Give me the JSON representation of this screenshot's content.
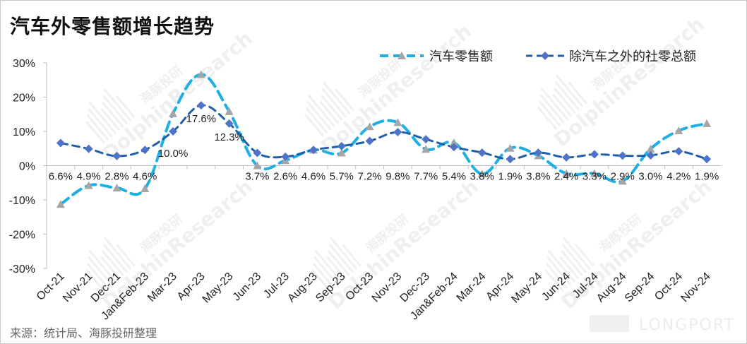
{
  "title": "汽车外零售额增长趋势",
  "source": "来源：统计局、海豚投研整理",
  "watermark": {
    "cn": "海豚投研",
    "en": "DolphinResearch",
    "brand": "LONGPORT"
  },
  "colors": {
    "retail_line": "#1eb0e3",
    "retail_marker": "#a6a6a6",
    "ex_line": "#1f5fa8",
    "ex_marker": "#4f73c7",
    "axis": "#bfbfbf"
  },
  "chart_data": {
    "type": "line",
    "categories": [
      "Oct-21",
      "Nov-21",
      "Dec-21",
      "Jan&Feb-23",
      "Mar-23",
      "Apr-23",
      "May-23",
      "Jun-23",
      "Jul-23",
      "Aug-23",
      "Sep-23",
      "Oct-23",
      "Nov-23",
      "Dec-23",
      "Jan&Feb-24",
      "Mar-24",
      "Apr-24",
      "May-24",
      "Jun-24",
      "Jul-24",
      "Aug-24",
      "Sep-24",
      "Oct-24",
      "Nov-24"
    ],
    "ylim": [
      -30,
      30
    ],
    "yticks": [
      -30,
      -20,
      -10,
      0,
      10,
      20,
      30
    ],
    "ytick_labels": [
      "-30%",
      "-20%",
      "-10%",
      "0%",
      "10%",
      "20%",
      "30%"
    ],
    "legend_position": "top-right",
    "series": [
      {
        "name": "汽车零售额",
        "style": "dashed",
        "marker": "triangle",
        "values": [
          -11.3,
          -5.8,
          -6.5,
          -6.7,
          15.2,
          26.6,
          15.8,
          0.0,
          1.5,
          4.6,
          3.7,
          11.4,
          12.6,
          4.8,
          6.7,
          -2.4,
          5.1,
          2.9,
          -2.3,
          -2.3,
          -4.5,
          4.9,
          10.2,
          12.3
        ]
      },
      {
        "name": "除汽车之外的社零总额",
        "style": "dashed",
        "marker": "diamond",
        "values": [
          6.6,
          4.9,
          2.8,
          4.6,
          10.0,
          17.6,
          12.3,
          3.7,
          2.6,
          4.6,
          5.7,
          7.2,
          9.8,
          7.7,
          5.4,
          3.8,
          1.9,
          3.8,
          2.4,
          3.3,
          2.9,
          3.0,
          4.2,
          1.9
        ],
        "data_labels": [
          "6.6%",
          "4.9%",
          "2.8%",
          "4.6%",
          "10.0%",
          "17.6%",
          "12.3%",
          "3.7%",
          "2.6%",
          "4.6%",
          "5.7%",
          "7.2%",
          "9.8%",
          "7.7%",
          "5.4%",
          "3.8%",
          "1.9%",
          "3.8%",
          "2.4%",
          "3.3%",
          "2.9%",
          "3.0%",
          "4.2%",
          "1.9%"
        ]
      }
    ]
  }
}
